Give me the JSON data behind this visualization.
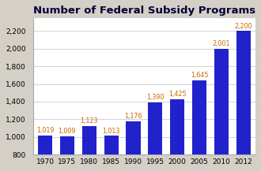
{
  "title": "Number of Federal Subsidy Programs",
  "categories": [
    "1970",
    "1975",
    "1980",
    "1985",
    "1990",
    "1995",
    "2000",
    "2005",
    "2010",
    "2012"
  ],
  "values": [
    1019,
    1009,
    1123,
    1013,
    1176,
    1390,
    1425,
    1645,
    2001,
    2200
  ],
  "bar_color": "#2222cc",
  "label_color": "#cc6600",
  "ylim": [
    800,
    2350
  ],
  "yticks": [
    800,
    1000,
    1200,
    1400,
    1600,
    1800,
    2000,
    2200
  ],
  "figure_bg": "#d4d0c8",
  "plot_bg": "#ffffff",
  "title_fontsize": 9.5,
  "label_fontsize": 5.8,
  "tick_fontsize": 6.5,
  "bar_width": 0.65
}
